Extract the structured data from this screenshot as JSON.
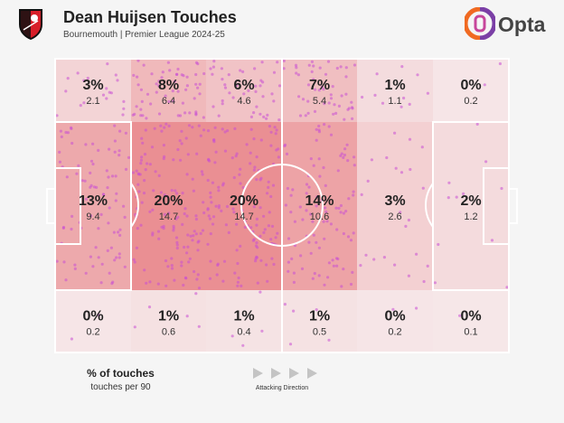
{
  "header": {
    "title": "Dean Huijsen Touches",
    "subtitle": "Bournemouth | Premier League 2024-25",
    "brand": "Opta"
  },
  "legend": {
    "pct_label": "% of touches",
    "per90_label": "touches per 90",
    "direction_label": "Attacking Direction"
  },
  "colors": {
    "zone_max": "#ea8f93",
    "zone_min": "#f6e9ea",
    "touch_dot": "#c94fd4",
    "line": "#ffffff",
    "brand_orange": "#f06a22",
    "brand_purple": "#7b3fa6",
    "crest_red": "#d81e29"
  },
  "chart_data": {
    "type": "heatmap",
    "title": "Dean Huijsen Touches",
    "columns": 6,
    "rows": [
      "top",
      "middle",
      "bottom"
    ],
    "direction": "left-to-right",
    "cells": [
      {
        "row": "top",
        "col": 1,
        "pct": "3%",
        "per90": "2.1"
      },
      {
        "row": "top",
        "col": 2,
        "pct": "8%",
        "per90": "6.4"
      },
      {
        "row": "top",
        "col": 3,
        "pct": "6%",
        "per90": "4.6"
      },
      {
        "row": "top",
        "col": 4,
        "pct": "7%",
        "per90": "5.4"
      },
      {
        "row": "top",
        "col": 5,
        "pct": "1%",
        "per90": "1.1"
      },
      {
        "row": "top",
        "col": 6,
        "pct": "0%",
        "per90": "0.2"
      },
      {
        "row": "middle",
        "col": 1,
        "pct": "13%",
        "per90": "9.4"
      },
      {
        "row": "middle",
        "col": 2,
        "pct": "20%",
        "per90": "14.7"
      },
      {
        "row": "middle",
        "col": 3,
        "pct": "20%",
        "per90": "14.7"
      },
      {
        "row": "middle",
        "col": 4,
        "pct": "14%",
        "per90": "10.6"
      },
      {
        "row": "middle",
        "col": 5,
        "pct": "3%",
        "per90": "2.6"
      },
      {
        "row": "middle",
        "col": 6,
        "pct": "2%",
        "per90": "1.2"
      },
      {
        "row": "bottom",
        "col": 1,
        "pct": "0%",
        "per90": "0.2"
      },
      {
        "row": "bottom",
        "col": 2,
        "pct": "1%",
        "per90": "0.6"
      },
      {
        "row": "bottom",
        "col": 3,
        "pct": "1%",
        "per90": "0.4"
      },
      {
        "row": "bottom",
        "col": 4,
        "pct": "1%",
        "per90": "0.5"
      },
      {
        "row": "bottom",
        "col": 5,
        "pct": "0%",
        "per90": "0.2"
      },
      {
        "row": "bottom",
        "col": 6,
        "pct": "0%",
        "per90": "0.1"
      }
    ]
  }
}
